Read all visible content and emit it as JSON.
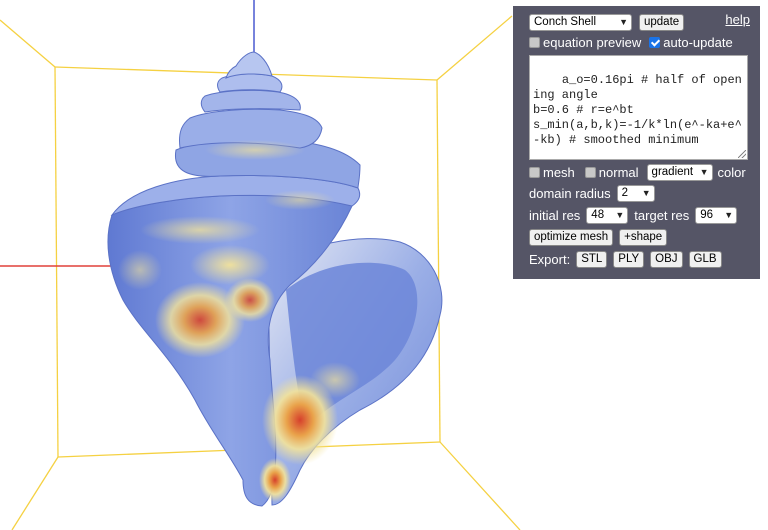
{
  "panel": {
    "preset_select": "Conch Shell",
    "update_button": "update",
    "help_link": "help",
    "equation_preview_label": "equation preview",
    "equation_preview_checked": false,
    "auto_update_label": "auto-update",
    "auto_update_checked": true,
    "code_text": "a_o=0.16pi # half of opening angle\nb=0.6 # r=e^bt\ns_min(a,b,k)=-1/k*ln(e^-ka+e^-kb) # smoothed minimum\n\n# Cross section",
    "mesh_label": "mesh",
    "mesh_checked": false,
    "normal_label": "normal",
    "normal_checked": false,
    "color_mode_select": "gradient",
    "color_label": "color",
    "domain_radius_label": "domain radius",
    "domain_radius_value": "2",
    "initial_res_label": "initial res",
    "initial_res_value": "48",
    "target_res_label": "target res",
    "target_res_value": "96",
    "optimize_mesh_button": "optimize mesh",
    "add_shape_button": "+shape",
    "export_label": "Export:",
    "export_buttons": [
      "STL",
      "PLY",
      "OBJ",
      "GLB"
    ]
  },
  "colors": {
    "panel_bg": "#555566",
    "bounding_box": "#f5d142",
    "axis_x": "#e0403a",
    "axis_y": "#3a9a4a",
    "axis_z": "#4a5ad0",
    "surface_low": "#6c86d8",
    "surface_mid": "#f3e39a",
    "surface_high": "#d6402c"
  }
}
